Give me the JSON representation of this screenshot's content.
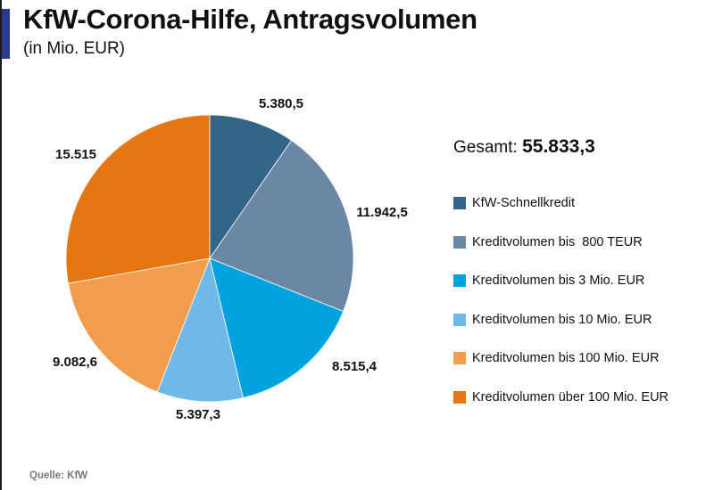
{
  "header": {
    "title": "KfW-Corona-Hilfe, Antragsvolumen",
    "subtitle": "(in Mio. EUR)"
  },
  "total": {
    "label": "Gesamt:",
    "value": "55.833,3"
  },
  "source": "Quelle: KfW",
  "chart_data": {
    "type": "pie",
    "title": "KfW-Corona-Hilfe, Antragsvolumen",
    "subtitle": "(in Mio. EUR)",
    "legend_position": "right",
    "slices": [
      {
        "label": "KfW-Schnellkredit",
        "value": 5380.5,
        "display": "5.380,5",
        "color": "#336588"
      },
      {
        "label": "Kreditvolumen bis  800 TEUR",
        "value": 11942.5,
        "display": "11.942,5",
        "color": "#6a87a6"
      },
      {
        "label": "Kreditvolumen bis 3 Mio. EUR",
        "value": 8515.4,
        "display": "8.515,4",
        "color": "#00a2e0"
      },
      {
        "label": "Kreditvolumen bis 10 Mio. EUR",
        "value": 5397.3,
        "display": "5.397,3",
        "color": "#6fb9e8"
      },
      {
        "label": "Kreditvolumen bis 100 Mio. EUR",
        "value": 9082.6,
        "display": "9.082,6",
        "color": "#f09e4e"
      },
      {
        "label": "Kreditvolumen über 100 Mio. EUR",
        "value": 15515,
        "display": "15.515",
        "color": "#e67612"
      }
    ]
  }
}
